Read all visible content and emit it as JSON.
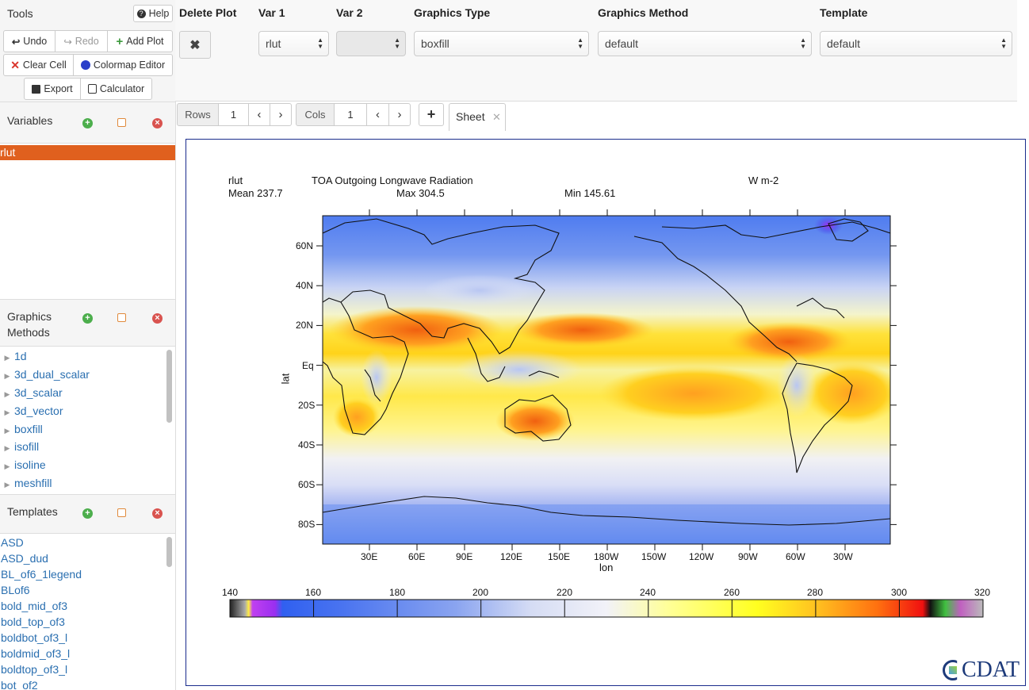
{
  "tools": {
    "title": "Tools",
    "help": "Help",
    "undo": "Undo",
    "redo": "Redo",
    "add_plot": "Add Plot",
    "clear_cell": "Clear Cell",
    "colormap_editor": "Colormap Editor",
    "export": "Export",
    "calculator": "Calculator"
  },
  "variables": {
    "title": "Variables",
    "items": [
      "rlut"
    ]
  },
  "graphics_methods": {
    "title_line1": "Graphics",
    "title_line2": "Methods",
    "items": [
      "1d",
      "3d_dual_scalar",
      "3d_scalar",
      "3d_vector",
      "boxfill",
      "isofill",
      "isoline",
      "meshfill"
    ]
  },
  "templates": {
    "title": "Templates",
    "items": [
      "ASD",
      "ASD_dud",
      "BL_of6_1legend",
      "BLof6",
      "bold_mid_of3",
      "bold_top_of3",
      "boldbot_of3_l",
      "boldmid_of3_l",
      "boldtop_of3_l",
      "bot_of2"
    ]
  },
  "plot_config": {
    "headers": {
      "delete_plot": "Delete Plot",
      "var1": "Var 1",
      "var2": "Var 2",
      "graphics_type": "Graphics Type",
      "graphics_method": "Graphics Method",
      "template": "Template"
    },
    "var1_value": "rlut",
    "var2_value": "",
    "graphics_type_value": "boxfill",
    "graphics_method_value": "default",
    "template_value": "default"
  },
  "sheet_controls": {
    "rows_label": "Rows",
    "rows_value": "1",
    "cols_label": "Cols",
    "cols_value": "1",
    "tab_label": "Sheet"
  },
  "plot": {
    "var_name": "rlut",
    "long_name": "TOA Outgoing Longwave Radiation",
    "units": "W m-2",
    "mean": "Mean 237.7",
    "max": "Max 304.5",
    "min": "Min 145.61",
    "ylabel": "lat",
    "xlabel": "lon",
    "lat_ticks": [
      "60N",
      "40N",
      "20N",
      "Eq",
      "20S",
      "40S",
      "60S",
      "80S"
    ],
    "lon_ticks": [
      "30E",
      "60E",
      "90E",
      "120E",
      "150E",
      "180W",
      "150W",
      "120W",
      "90W",
      "60W",
      "30W"
    ],
    "colorbar_ticks": [
      "140",
      "160",
      "180",
      "200",
      "220",
      "240",
      "260",
      "280",
      "300",
      "320"
    ]
  },
  "logo": "CDAT",
  "colors": {
    "selected_variable": "#e0601e",
    "link": "#2a6fb0",
    "canvas_border": "#1a2c8c"
  }
}
